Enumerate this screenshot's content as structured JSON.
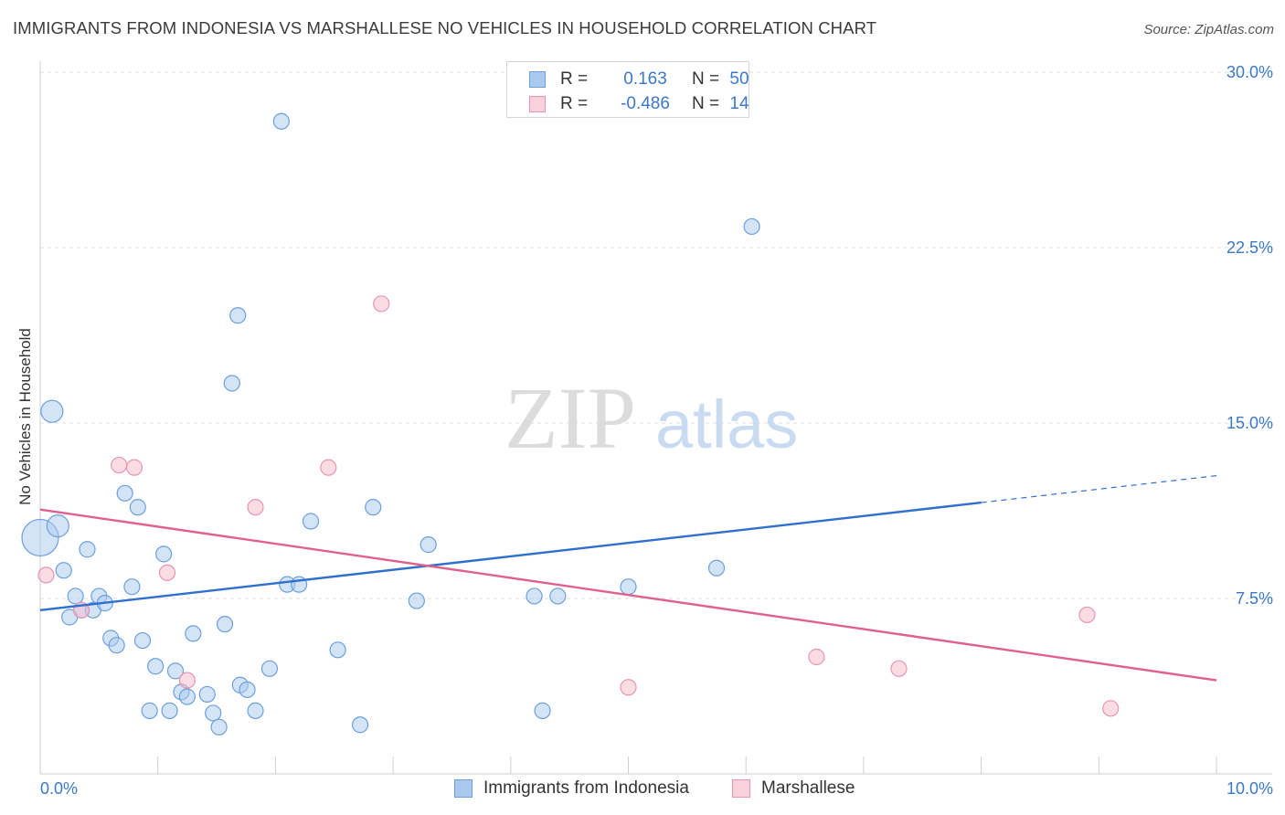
{
  "header": {
    "title": "IMMIGRANTS FROM INDONESIA VS MARSHALLESE NO VEHICLES IN HOUSEHOLD CORRELATION CHART",
    "source": "Source: ZipAtlas.com"
  },
  "watermark": {
    "zip": "ZIP",
    "atlas": "atlas"
  },
  "colors": {
    "blue_fill": "#a9c9f0",
    "blue_stroke": "#6c9fdc",
    "blue_line": "#2f6fce",
    "pink_fill": "#f5b9cb",
    "pink_stroke": "#e896b0",
    "pink_line": "#e0608e",
    "grid": "#dedede",
    "axis_label": "#3c78c8"
  },
  "legend_top": {
    "rows": [
      {
        "r_label": "R =",
        "r_value": "0.163",
        "n_label": "N =",
        "n_value": "50"
      },
      {
        "r_label": "R =",
        "r_value": "-0.486",
        "n_label": "N =",
        "n_value": "14"
      }
    ]
  },
  "legend_bottom": {
    "items": [
      {
        "label": "Immigrants from Indonesia"
      },
      {
        "label": "Marshallese"
      }
    ]
  },
  "chart_data": {
    "type": "scatter",
    "title": "IMMIGRANTS FROM INDONESIA VS MARSHALLESE NO VEHICLES IN HOUSEHOLD CORRELATION CHART",
    "xlabel": "",
    "ylabel": "No Vehicles in Household",
    "xlim": [
      0,
      10
    ],
    "ylim": [
      0,
      30.0
    ],
    "x_tick_labels": [
      "0.0%",
      "10.0%"
    ],
    "y_ticks": [
      7.5,
      15.0,
      22.5,
      30.0
    ],
    "y_tick_labels": [
      "7.5%",
      "15.0%",
      "22.5%",
      "30.0%"
    ],
    "grid": true,
    "legend_position": "bottom",
    "series": [
      {
        "name": "Immigrants from Indonesia",
        "trend": {
          "x": [
            0,
            8.0
          ],
          "y": [
            7.0,
            11.6
          ],
          "extension": {
            "x": [
              8.0,
              10
            ],
            "y": [
              11.6,
              12.75
            ]
          }
        },
        "points": [
          {
            "x": 0.0,
            "y": 10.1,
            "s": 3
          },
          {
            "x": 0.1,
            "y": 15.5,
            "s": 2
          },
          {
            "x": 0.15,
            "y": 10.6,
            "s": 2
          },
          {
            "x": 0.2,
            "y": 8.7,
            "s": 1
          },
          {
            "x": 0.25,
            "y": 6.7,
            "s": 1
          },
          {
            "x": 0.3,
            "y": 7.6,
            "s": 1
          },
          {
            "x": 0.35,
            "y": 7.0,
            "s": 1
          },
          {
            "x": 0.4,
            "y": 9.6,
            "s": 1
          },
          {
            "x": 0.45,
            "y": 7.0,
            "s": 1
          },
          {
            "x": 0.5,
            "y": 7.6,
            "s": 1
          },
          {
            "x": 0.55,
            "y": 7.3,
            "s": 1
          },
          {
            "x": 0.6,
            "y": 5.8,
            "s": 1
          },
          {
            "x": 0.65,
            "y": 5.5,
            "s": 1
          },
          {
            "x": 0.72,
            "y": 12.0,
            "s": 1
          },
          {
            "x": 0.78,
            "y": 8.0,
            "s": 1
          },
          {
            "x": 0.83,
            "y": 11.4,
            "s": 1
          },
          {
            "x": 0.87,
            "y": 5.7,
            "s": 1
          },
          {
            "x": 0.93,
            "y": 2.7,
            "s": 1
          },
          {
            "x": 0.98,
            "y": 4.6,
            "s": 1
          },
          {
            "x": 1.05,
            "y": 9.4,
            "s": 1
          },
          {
            "x": 1.1,
            "y": 2.7,
            "s": 1
          },
          {
            "x": 1.15,
            "y": 4.4,
            "s": 1
          },
          {
            "x": 1.2,
            "y": 3.5,
            "s": 1
          },
          {
            "x": 1.25,
            "y": 3.3,
            "s": 1
          },
          {
            "x": 1.3,
            "y": 6.0,
            "s": 1
          },
          {
            "x": 1.42,
            "y": 3.4,
            "s": 1
          },
          {
            "x": 1.47,
            "y": 2.6,
            "s": 1
          },
          {
            "x": 1.52,
            "y": 2.0,
            "s": 1
          },
          {
            "x": 1.57,
            "y": 6.4,
            "s": 1
          },
          {
            "x": 1.63,
            "y": 16.7,
            "s": 1
          },
          {
            "x": 1.68,
            "y": 19.6,
            "s": 1
          },
          {
            "x": 1.7,
            "y": 3.8,
            "s": 1
          },
          {
            "x": 1.76,
            "y": 3.6,
            "s": 1
          },
          {
            "x": 1.83,
            "y": 2.7,
            "s": 1
          },
          {
            "x": 1.95,
            "y": 4.5,
            "s": 1
          },
          {
            "x": 2.05,
            "y": 27.9,
            "s": 1
          },
          {
            "x": 2.1,
            "y": 8.1,
            "s": 1
          },
          {
            "x": 2.2,
            "y": 8.1,
            "s": 1
          },
          {
            "x": 2.3,
            "y": 10.8,
            "s": 1
          },
          {
            "x": 2.53,
            "y": 5.3,
            "s": 1
          },
          {
            "x": 2.72,
            "y": 2.1,
            "s": 1
          },
          {
            "x": 2.83,
            "y": 11.4,
            "s": 1
          },
          {
            "x": 3.2,
            "y": 7.4,
            "s": 1
          },
          {
            "x": 3.3,
            "y": 9.8,
            "s": 1
          },
          {
            "x": 4.2,
            "y": 7.6,
            "s": 1
          },
          {
            "x": 4.27,
            "y": 2.7,
            "s": 1
          },
          {
            "x": 4.4,
            "y": 7.6,
            "s": 1
          },
          {
            "x": 5.0,
            "y": 8.0,
            "s": 1
          },
          {
            "x": 5.75,
            "y": 8.8,
            "s": 1
          },
          {
            "x": 6.05,
            "y": 23.4,
            "s": 1
          }
        ]
      },
      {
        "name": "Marshallese",
        "trend": {
          "x": [
            0,
            10
          ],
          "y": [
            11.3,
            4.0
          ]
        },
        "points": [
          {
            "x": 0.05,
            "y": 8.5,
            "s": 1
          },
          {
            "x": 0.35,
            "y": 7.0,
            "s": 1
          },
          {
            "x": 0.67,
            "y": 13.2,
            "s": 1
          },
          {
            "x": 0.8,
            "y": 13.1,
            "s": 1
          },
          {
            "x": 1.08,
            "y": 8.6,
            "s": 1
          },
          {
            "x": 1.25,
            "y": 4.0,
            "s": 1
          },
          {
            "x": 1.83,
            "y": 11.4,
            "s": 1
          },
          {
            "x": 2.45,
            "y": 13.1,
            "s": 1
          },
          {
            "x": 2.9,
            "y": 20.1,
            "s": 1
          },
          {
            "x": 5.0,
            "y": 3.7,
            "s": 1
          },
          {
            "x": 6.6,
            "y": 5.0,
            "s": 1
          },
          {
            "x": 7.3,
            "y": 4.5,
            "s": 1
          },
          {
            "x": 8.9,
            "y": 6.8,
            "s": 1
          },
          {
            "x": 9.1,
            "y": 2.8,
            "s": 1
          }
        ]
      }
    ]
  }
}
